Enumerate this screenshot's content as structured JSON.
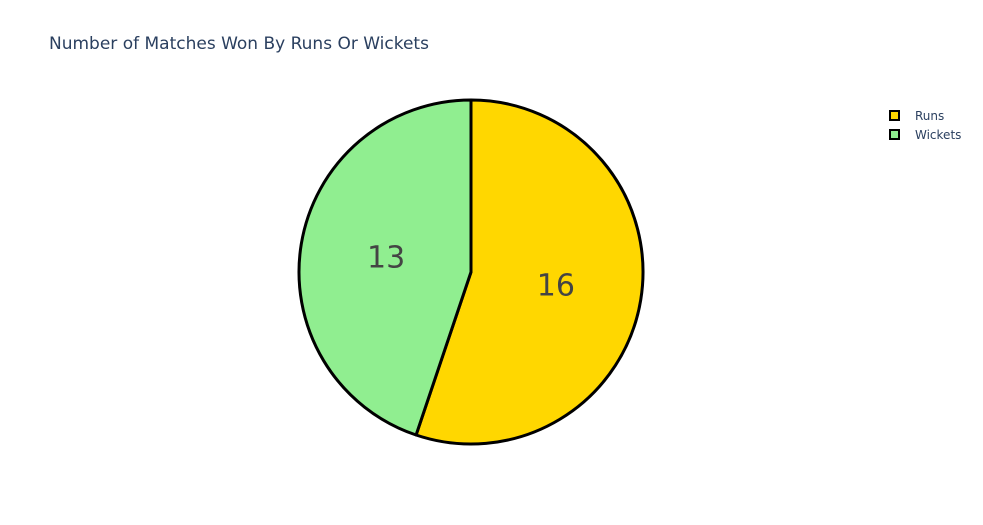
{
  "chart_data": {
    "type": "pie",
    "title": "Number of Matches Won By Runs Or Wickets",
    "categories": [
      "Runs",
      "Wickets"
    ],
    "values": [
      16,
      13
    ],
    "colors": [
      "#FFD700",
      "#90EE90"
    ],
    "slice_border_color": "#000000",
    "text_info": "value",
    "direction": "clockwise",
    "start_angle_deg": 90,
    "legend_placement": "top-right"
  }
}
